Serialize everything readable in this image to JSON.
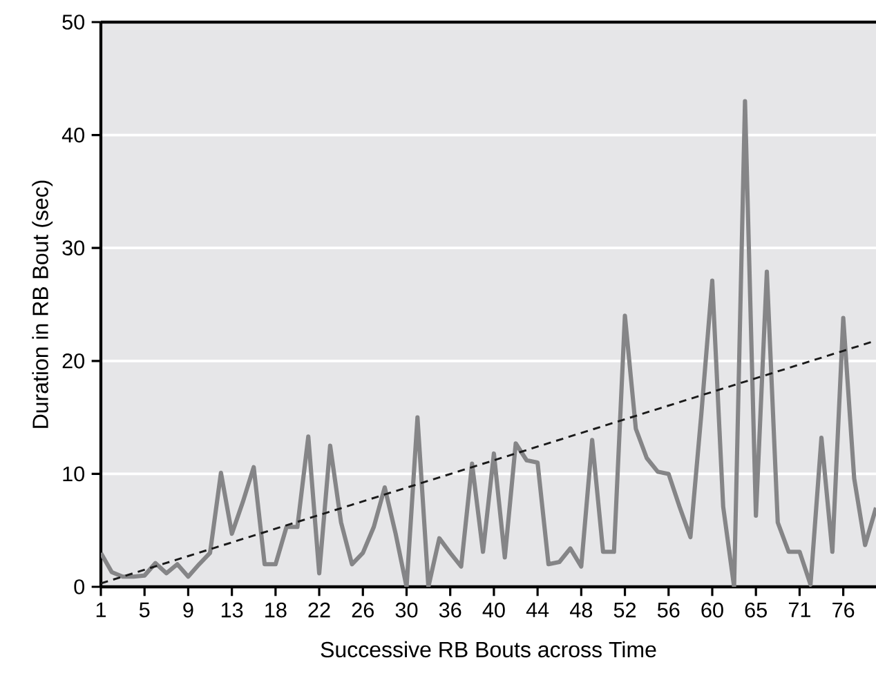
{
  "chart_data": {
    "type": "line",
    "xlabel": "Successive RB Bouts across Time",
    "ylabel": "Duration in RB Bout (sec)",
    "categories": [
      "1",
      null,
      null,
      null,
      "5",
      null,
      null,
      null,
      "9",
      null,
      null,
      null,
      "13",
      null,
      null,
      null,
      "18",
      null,
      null,
      null,
      "22",
      null,
      null,
      null,
      "26",
      null,
      null,
      null,
      "30",
      null,
      null,
      null,
      "36",
      null,
      null,
      null,
      "40",
      null,
      null,
      null,
      "44",
      null,
      null,
      null,
      "48",
      null,
      null,
      null,
      "52",
      null,
      null,
      null,
      "56",
      null,
      null,
      null,
      "60",
      null,
      null,
      null,
      "65",
      null,
      null,
      null,
      "71",
      null,
      null,
      null,
      "76",
      null,
      null,
      null
    ],
    "series": [
      {
        "color": "#858587",
        "line_style": "solid",
        "values": [
          3.0,
          1.3,
          0.9,
          0.9,
          1.0,
          2.1,
          1.2,
          2.0,
          0.9,
          2.0,
          3.0,
          10.1,
          4.7,
          7.5,
          10.6,
          2.0,
          2.0,
          5.3,
          5.3,
          13.3,
          1.2,
          12.5,
          5.7,
          2.0,
          3.0,
          5.3,
          8.8,
          4.7,
          0,
          15.0,
          0,
          4.3,
          3.0,
          1.8,
          10.9,
          3.1,
          11.8,
          2.6,
          12.7,
          11.2,
          11.0,
          2.0,
          2.2,
          3.4,
          1.8,
          13.0,
          3.1,
          3.1,
          24.0,
          14.0,
          11.4,
          10.2,
          10.0,
          7.1,
          4.4,
          15.3,
          27.1,
          7.1,
          0,
          43.0,
          6.3,
          27.9,
          5.7,
          3.1,
          3.1,
          0.2,
          13.2,
          3.1,
          23.8,
          9.6,
          3.7,
          7.0
        ]
      },
      {
        "color": "#1a1a1a",
        "line_style": "dashed",
        "values": [
          0.3,
          null,
          null,
          null,
          null,
          null,
          null,
          null,
          null,
          null,
          null,
          null,
          null,
          null,
          null,
          null,
          null,
          null,
          null,
          null,
          null,
          null,
          null,
          null,
          null,
          null,
          null,
          null,
          null,
          null,
          null,
          null,
          null,
          null,
          null,
          null,
          null,
          null,
          null,
          null,
          null,
          null,
          null,
          null,
          null,
          null,
          null,
          null,
          null,
          null,
          null,
          null,
          null,
          null,
          null,
          null,
          null,
          null,
          null,
          null,
          null,
          null,
          null,
          null,
          null,
          null,
          null,
          null,
          null,
          null,
          null,
          21.8
        ]
      }
    ],
    "ylim": [
      0,
      50
    ],
    "yticks": [
      0,
      10,
      20,
      30,
      40,
      50
    ],
    "grid": "y",
    "marker": "none"
  }
}
